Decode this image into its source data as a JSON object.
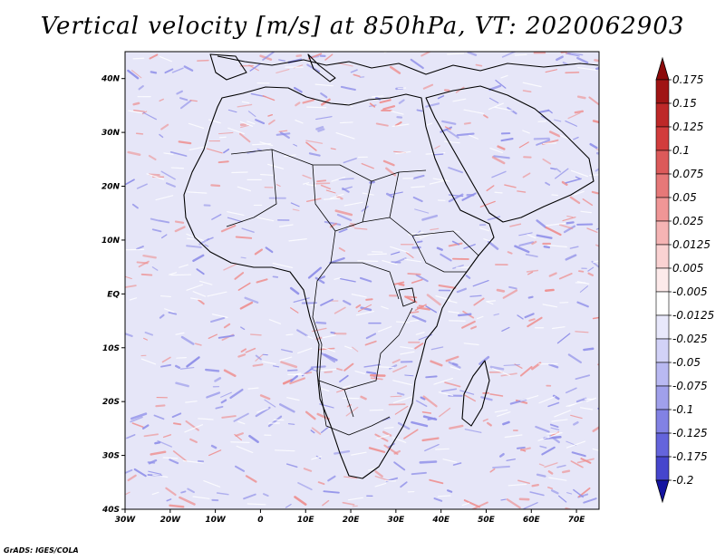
{
  "title": "Vertical velocity [m/s] at 850hPa, VT: 2020062903",
  "credit": "GrADS: IGES/COLA",
  "map": {
    "lon_range": [
      -30,
      75
    ],
    "lat_range": [
      -40,
      45
    ],
    "x_ticks": [
      {
        "lon": -30,
        "label": "30W"
      },
      {
        "lon": -20,
        "label": "20W"
      },
      {
        "lon": -10,
        "label": "10W"
      },
      {
        "lon": 0,
        "label": "0"
      },
      {
        "lon": 10,
        "label": "10E"
      },
      {
        "lon": 20,
        "label": "20E"
      },
      {
        "lon": 30,
        "label": "30E"
      },
      {
        "lon": 40,
        "label": "40E"
      },
      {
        "lon": 50,
        "label": "50E"
      },
      {
        "lon": 60,
        "label": "60E"
      },
      {
        "lon": 70,
        "label": "70E"
      }
    ],
    "y_ticks": [
      {
        "lat": 40,
        "label": "40N"
      },
      {
        "lat": 30,
        "label": "30N"
      },
      {
        "lat": 20,
        "label": "20N"
      },
      {
        "lat": 10,
        "label": "10N"
      },
      {
        "lat": 0,
        "label": "EQ"
      },
      {
        "lat": -10,
        "label": "10S"
      },
      {
        "lat": -20,
        "label": "20S"
      },
      {
        "lat": -30,
        "label": "30S"
      },
      {
        "lat": -40,
        "label": "40S"
      }
    ]
  },
  "colorbar": {
    "levels": [
      {
        "label": "0.175",
        "color": "#a01414"
      },
      {
        "label": "0.15",
        "color": "#be2828"
      },
      {
        "label": "0.125",
        "color": "#d23c3c"
      },
      {
        "label": "0.1",
        "color": "#dc5a5a"
      },
      {
        "label": "0.075",
        "color": "#e67878"
      },
      {
        "label": "0.05",
        "color": "#f09696"
      },
      {
        "label": "0.025",
        "color": "#f5b4b4"
      },
      {
        "label": "0.0125",
        "color": "#fad2d2"
      },
      {
        "label": "0.005",
        "color": "#fdeaea"
      },
      {
        "label": "-0.005",
        "color": "#ffffff"
      },
      {
        "label": "-0.0125",
        "color": "#e8e8fb"
      },
      {
        "label": "-0.025",
        "color": "#d2d2f7"
      },
      {
        "label": "-0.05",
        "color": "#b9b9f2"
      },
      {
        "label": "-0.075",
        "color": "#a0a0eb"
      },
      {
        "label": "-0.1",
        "color": "#8282e4"
      },
      {
        "label": "-0.125",
        "color": "#6464dc"
      },
      {
        "label": "-0.175",
        "color": "#4646cd"
      },
      {
        "label": "-0.2",
        "color": "#2828b4"
      }
    ],
    "top_color": "#8c0a0a",
    "bottom_color": "#1414a0"
  },
  "colors": {
    "field_background": "#e6e6f8",
    "pos_anomaly": "#ee8e8e",
    "neg_anomaly": "#8e8ee8",
    "border": "#000000"
  }
}
